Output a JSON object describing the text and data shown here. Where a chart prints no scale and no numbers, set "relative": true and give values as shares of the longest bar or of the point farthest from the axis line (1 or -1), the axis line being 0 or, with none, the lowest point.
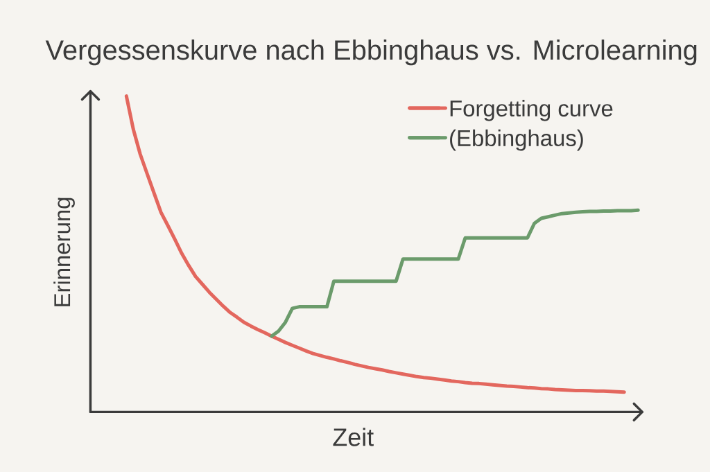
{
  "chart_data": {
    "type": "line",
    "title": "Vergessenskurve nach Ebbinghaus vs. Microlearning",
    "xlabel": "Zeit",
    "ylabel": "Erinnerung",
    "relative": true,
    "legend": "top right",
    "line_style": "solid",
    "categories": [
      null,
      null,
      null,
      null,
      null,
      null,
      null,
      null,
      null,
      null,
      null,
      null,
      null,
      null,
      null,
      null,
      null,
      null,
      null,
      null,
      null,
      null,
      null,
      null,
      null,
      null,
      null,
      null,
      null,
      null,
      null,
      null,
      null,
      null,
      null,
      null,
      null,
      null,
      null,
      null,
      null,
      null,
      null,
      null,
      null,
      null,
      null,
      null,
      null,
      null,
      null,
      null,
      null,
      null,
      null,
      null,
      null,
      null,
      null,
      null,
      null,
      null,
      null,
      null,
      null,
      null,
      null,
      null,
      null,
      null,
      null,
      null,
      null,
      null,
      null
    ],
    "series": [
      {
        "name": "Forgetting curve",
        "color": "#e3675e",
        "values": [
          1,
          0.895,
          0.816,
          0.754,
          0.693,
          0.632,
          0.59,
          0.547,
          0.502,
          0.464,
          0.429,
          0.404,
          0.379,
          0.357,
          0.335,
          0.315,
          0.3,
          0.284,
          0.272,
          0.261,
          0.251,
          0.24,
          0.23,
          0.22,
          0.211,
          0.202,
          0.193,
          0.185,
          0.179,
          0.173,
          0.168,
          0.162,
          0.157,
          0.151,
          0.146,
          0.141,
          0.137,
          0.133,
          0.128,
          0.124,
          0.12,
          0.116,
          0.112,
          0.109,
          0.107,
          0.104,
          0.101,
          0.098,
          0.096,
          0.093,
          0.091,
          0.09,
          0.088,
          0.086,
          0.084,
          0.082,
          0.081,
          0.079,
          0.077,
          0.076,
          0.074,
          0.073,
          0.071,
          0.07,
          0.069,
          0.068,
          0.068,
          0.067,
          0.066,
          0.066,
          0.065,
          0.064,
          0.063,
          null,
          null
        ]
      },
      {
        "name": "(Ebbinghaus)",
        "color": "#6b9b6b",
        "values": [
          null,
          null,
          null,
          null,
          null,
          null,
          null,
          null,
          null,
          null,
          null,
          null,
          null,
          null,
          null,
          null,
          null,
          null,
          null,
          null,
          null,
          0.24,
          0.256,
          0.284,
          0.328,
          0.333,
          0.333,
          0.333,
          0.333,
          0.333,
          0.414,
          0.414,
          0.414,
          0.414,
          0.414,
          0.414,
          0.414,
          0.414,
          0.414,
          0.414,
          0.484,
          0.484,
          0.484,
          0.484,
          0.484,
          0.484,
          0.484,
          0.484,
          0.484,
          0.551,
          0.551,
          0.551,
          0.551,
          0.551,
          0.551,
          0.551,
          0.551,
          0.551,
          0.551,
          0.597,
          0.613,
          0.618,
          0.623,
          0.628,
          0.63,
          0.632,
          0.634,
          0.635,
          0.635,
          0.636,
          0.636,
          0.637,
          0.637,
          0.637,
          0.639
        ]
      }
    ]
  }
}
